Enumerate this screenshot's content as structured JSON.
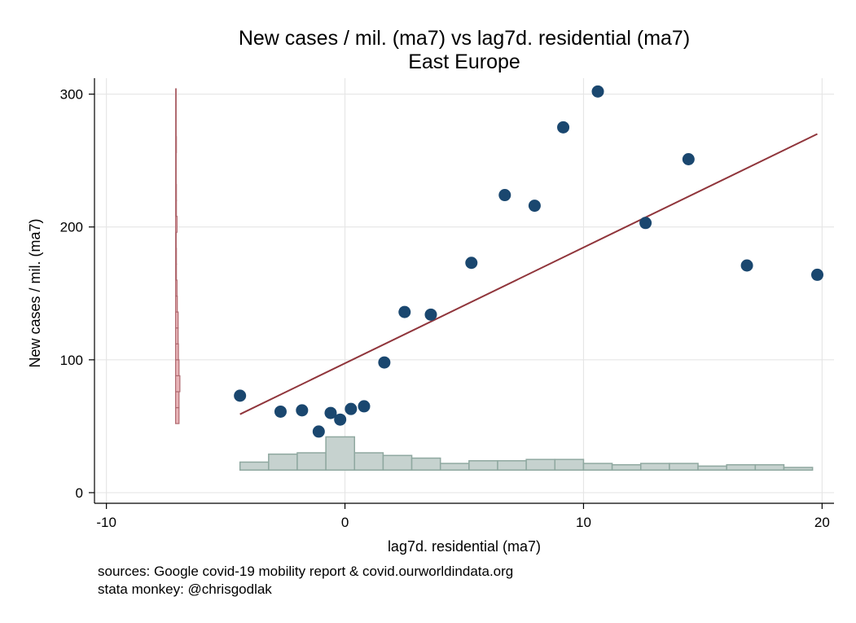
{
  "chart_data": {
    "type": "scatter",
    "title": "New cases / mil. (ma7) vs lag7d. residential (ma7)",
    "subtitle": "East Europe",
    "xlabel": "lag7d. residential (ma7)",
    "ylabel": "New cases / mil. (ma7)",
    "xlim": [
      -10.5,
      20.5
    ],
    "ylim": [
      -8,
      312
    ],
    "xticks": [
      -10,
      0,
      10,
      20
    ],
    "xtick_labels": [
      "-10",
      "0",
      "10",
      "20"
    ],
    "yticks": [
      0,
      100,
      200,
      300
    ],
    "ytick_labels": [
      "0",
      "100",
      "200",
      "300"
    ],
    "grid": true,
    "points": [
      {
        "x": -4.4,
        "y": 73
      },
      {
        "x": -2.7,
        "y": 61
      },
      {
        "x": -1.8,
        "y": 62
      },
      {
        "x": -1.1,
        "y": 46
      },
      {
        "x": -0.6,
        "y": 60
      },
      {
        "x": -0.2,
        "y": 55
      },
      {
        "x": 0.25,
        "y": 63
      },
      {
        "x": 0.8,
        "y": 65
      },
      {
        "x": 1.65,
        "y": 98
      },
      {
        "x": 2.5,
        "y": 136
      },
      {
        "x": 3.6,
        "y": 134
      },
      {
        "x": 5.3,
        "y": 173
      },
      {
        "x": 6.7,
        "y": 224
      },
      {
        "x": 7.95,
        "y": 216
      },
      {
        "x": 9.15,
        "y": 275
      },
      {
        "x": 10.6,
        "y": 302
      },
      {
        "x": 12.6,
        "y": 203
      },
      {
        "x": 14.4,
        "y": 251
      },
      {
        "x": 16.85,
        "y": 171
      },
      {
        "x": 19.8,
        "y": 164
      }
    ],
    "fit_line": {
      "x": [
        -4.4,
        19.8
      ],
      "y": [
        59,
        270
      ]
    },
    "x_histogram": {
      "bin_edges": [
        -4.4,
        -3.2,
        -2.0,
        -0.8,
        0.4,
        1.6,
        2.8,
        4.0,
        5.2,
        6.4,
        7.6,
        8.8,
        10.0,
        11.2,
        12.4,
        13.6,
        14.8,
        16.0,
        17.2,
        18.4,
        19.6
      ],
      "heights": [
        6,
        12,
        13,
        25,
        13,
        11,
        9,
        5,
        7,
        7,
        8,
        8,
        5,
        4,
        5,
        5,
        3,
        4,
        4,
        2
      ]
    },
    "y_histogram": {
      "bin_edges": [
        52,
        64,
        76,
        88,
        100,
        112,
        124,
        136,
        148,
        160,
        172,
        184,
        196,
        208,
        220,
        232,
        244,
        256,
        268,
        280,
        292,
        304
      ],
      "widths": [
        1.2,
        1.2,
        1.5,
        1.2,
        1.0,
        0.9,
        0.9,
        0.6,
        0.5,
        0.3,
        0.3,
        0.2,
        0.5,
        0.3,
        0.3,
        0.2,
        0.1,
        0.3,
        0.1,
        0.1,
        0.1
      ]
    },
    "colors": {
      "points": "#1a476f",
      "fit_line": "#90353b",
      "x_hist_fill": "#c6d2cf",
      "x_hist_stroke": "#8fa8a0",
      "y_hist_fill": "#e8b4b8",
      "y_hist_stroke": "#b06a70",
      "grid": "#e6e6e6"
    }
  },
  "notes": {
    "line1": "sources: Google covid-19 mobility report & covid.ourworldindata.org",
    "line2": "stata monkey: @chrisgodlak"
  }
}
